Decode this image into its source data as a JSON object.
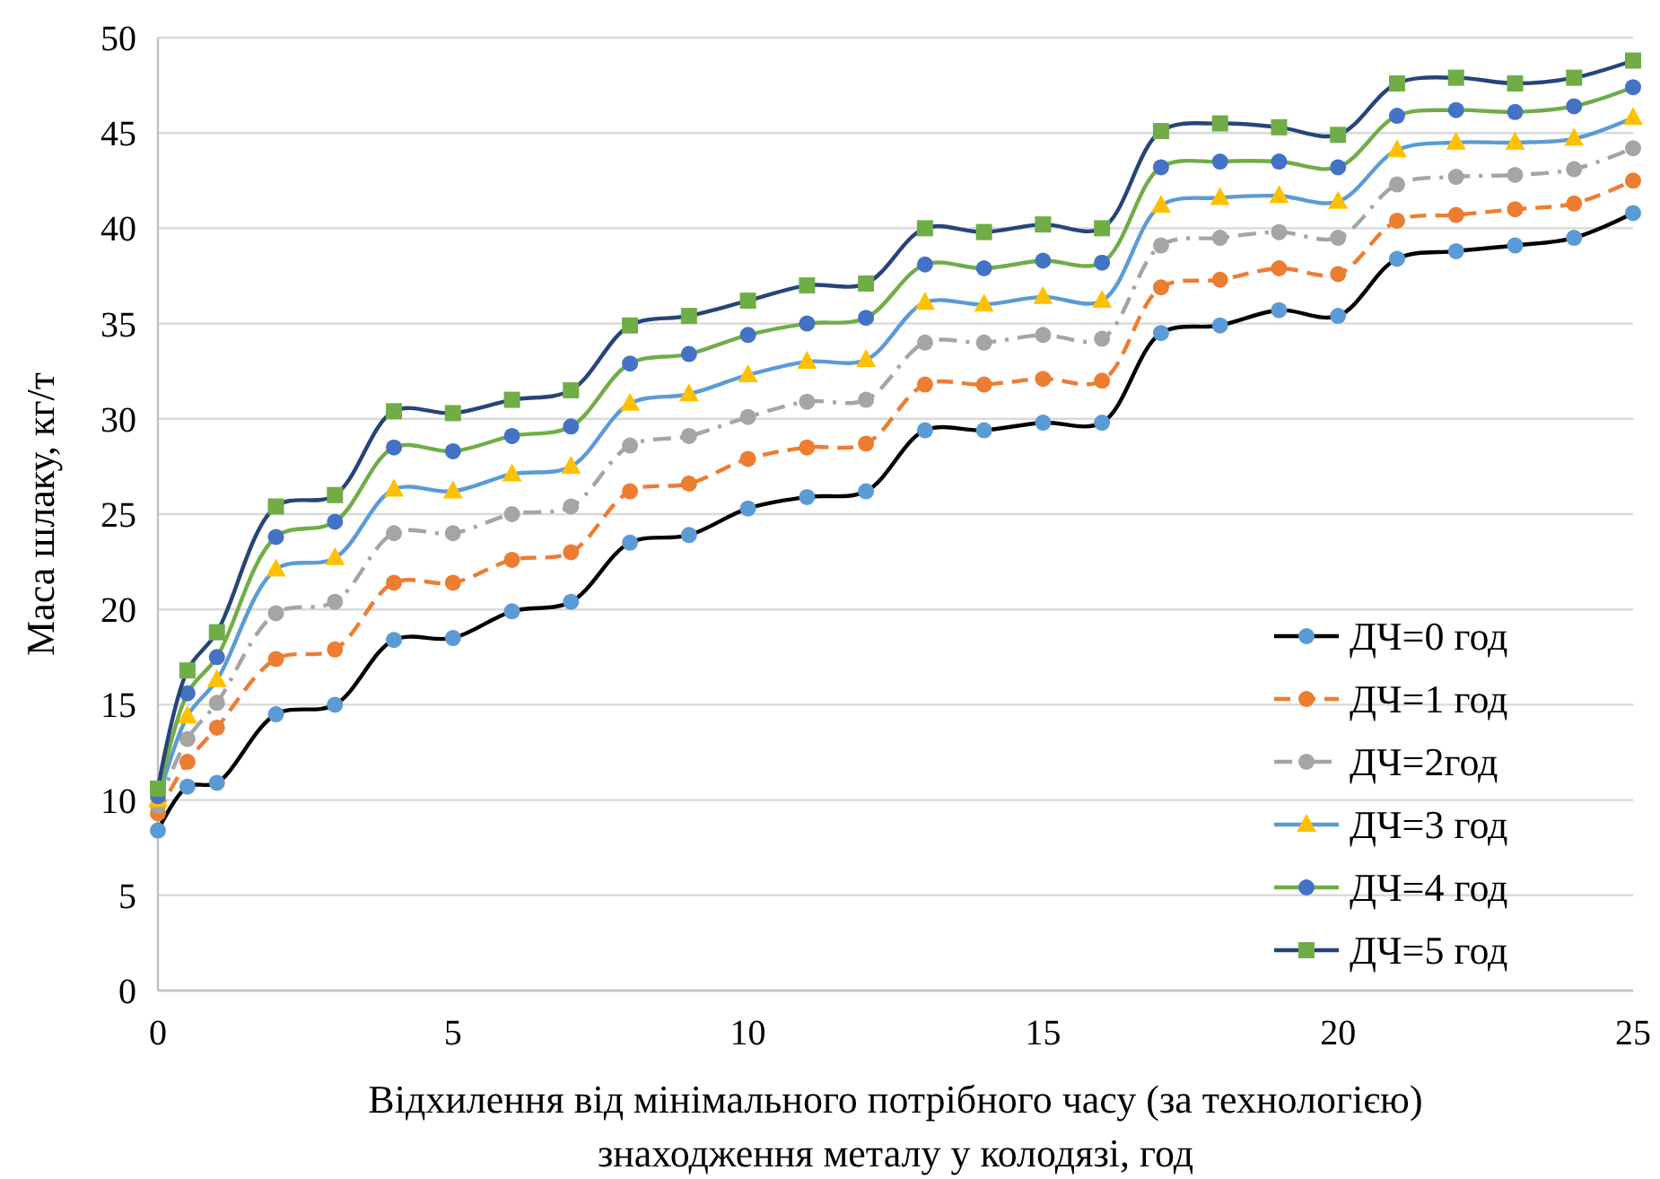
{
  "chart_data": {
    "type": "line",
    "xlabel": "Відхилення від мінімального потрібного часу (за технологією)\nзнаходження металу у колодязі, год",
    "ylabel": "Маса шлаку, кг/т",
    "x": [
      0,
      0.5,
      1,
      2,
      3,
      4,
      5,
      6,
      7,
      8,
      9,
      10,
      11,
      12,
      13,
      14,
      15,
      16,
      17,
      18,
      19,
      20,
      21,
      22,
      23,
      24,
      25
    ],
    "xlim": [
      0,
      25
    ],
    "xticks": [
      0,
      5,
      10,
      15,
      20,
      25
    ],
    "ylim": [
      0,
      50
    ],
    "yticks": [
      0,
      5,
      10,
      15,
      20,
      25,
      30,
      35,
      40,
      45,
      50
    ],
    "grid": "y",
    "legend": "bottom right",
    "series": [
      {
        "name": "ДЧ=0 год",
        "color": "#000000",
        "marker": "circle",
        "line_style": "solid",
        "colors": [
          "#5b9bd5",
          "#5b9bd5",
          "#5b9bd5",
          "#5b9bd5",
          "#5b9bd5",
          "#5b9bd5",
          "#5b9bd5",
          "#5b9bd5",
          "#5b9bd5",
          "#5b9bd5",
          "#5b9bd5",
          "#5b9bd5",
          "#5b9bd5",
          "#5b9bd5",
          "#5b9bd5",
          "#5b9bd5",
          "#5b9bd5",
          "#5b9bd5",
          "#5b9bd5",
          "#5b9bd5",
          "#5b9bd5",
          "#5b9bd5",
          "#5b9bd5",
          "#5b9bd5",
          "#5b9bd5",
          "#5b9bd5",
          "#5b9bd5"
        ],
        "values": [
          8.4,
          10.7,
          10.9,
          14.5,
          15.0,
          18.4,
          18.5,
          19.9,
          20.4,
          23.5,
          23.9,
          25.3,
          25.9,
          26.2,
          29.4,
          29.4,
          29.8,
          29.8,
          34.5,
          34.9,
          35.7,
          35.4,
          38.4,
          38.8,
          39.1,
          39.5,
          40.8
        ]
      },
      {
        "name": "ДЧ=1 год",
        "color": "#ed7d31",
        "marker": "circle",
        "line_style": "dashed",
        "colors": [
          "#ed7d31",
          "#ed7d31",
          "#ed7d31",
          "#ed7d31",
          "#ed7d31",
          "#ed7d31",
          "#ed7d31",
          "#ed7d31",
          "#ed7d31",
          "#ed7d31",
          "#ed7d31",
          "#ed7d31",
          "#ed7d31",
          "#ed7d31",
          "#ed7d31",
          "#ed7d31",
          "#ed7d31",
          "#ed7d31",
          "#ed7d31",
          "#ed7d31",
          "#ed7d31",
          "#ed7d31",
          "#ed7d31",
          "#ed7d31",
          "#ed7d31",
          "#ed7d31",
          "#ed7d31"
        ],
        "values": [
          9.3,
          12.0,
          13.8,
          17.4,
          17.9,
          21.4,
          21.4,
          22.6,
          23.0,
          26.2,
          26.6,
          27.9,
          28.5,
          28.7,
          31.8,
          31.8,
          32.1,
          32.0,
          36.9,
          37.3,
          37.9,
          37.6,
          40.4,
          40.7,
          41.0,
          41.3,
          42.5
        ]
      },
      {
        "name": "ДЧ=2год",
        "color": "#a5a5a5",
        "marker": "circle",
        "line_style": "dotted",
        "colors": [
          "#a5a5a5",
          "#a5a5a5",
          "#a5a5a5",
          "#a5a5a5",
          "#a5a5a5",
          "#a5a5a5",
          "#a5a5a5",
          "#a5a5a5",
          "#a5a5a5",
          "#a5a5a5",
          "#a5a5a5",
          "#a5a5a5",
          "#a5a5a5",
          "#a5a5a5",
          "#a5a5a5",
          "#a5a5a5",
          "#a5a5a5",
          "#a5a5a5",
          "#a5a5a5",
          "#a5a5a5",
          "#a5a5a5",
          "#a5a5a5",
          "#a5a5a5",
          "#a5a5a5",
          "#a5a5a5",
          "#a5a5a5",
          "#a5a5a5"
        ],
        "values": [
          9.7,
          13.2,
          15.1,
          19.8,
          20.4,
          24.0,
          24.0,
          25.0,
          25.4,
          28.6,
          29.1,
          30.1,
          30.9,
          31.0,
          34.0,
          34.0,
          34.4,
          34.2,
          39.1,
          39.5,
          39.8,
          39.5,
          42.3,
          42.7,
          42.8,
          43.1,
          44.2
        ]
      },
      {
        "name": "ДЧ=3 год",
        "color": "#5b9bd5",
        "marker": "triangle",
        "line_style": "solid",
        "colors": [
          "#ffc000",
          "#ffc000",
          "#ffc000",
          "#ffc000",
          "#ffc000",
          "#ffc000",
          "#ffc000",
          "#ffc000",
          "#ffc000",
          "#ffc000",
          "#ffc000",
          "#ffc000",
          "#ffc000",
          "#ffc000",
          "#ffc000",
          "#ffc000",
          "#ffc000",
          "#ffc000",
          "#ffc000",
          "#ffc000",
          "#ffc000",
          "#ffc000",
          "#ffc000",
          "#ffc000",
          "#ffc000",
          "#ffc000",
          "#ffc000"
        ],
        "values": [
          10.0,
          14.4,
          16.3,
          22.1,
          22.7,
          26.3,
          26.2,
          27.1,
          27.5,
          30.8,
          31.3,
          32.3,
          33.0,
          33.1,
          36.1,
          36.0,
          36.4,
          36.2,
          41.2,
          41.6,
          41.7,
          41.4,
          44.1,
          44.5,
          44.5,
          44.7,
          45.8
        ]
      },
      {
        "name": "ДЧ=4 год",
        "color": "#70ad47",
        "marker": "circle",
        "line_style": "solid",
        "colors": [
          "#4472c4",
          "#4472c4",
          "#4472c4",
          "#4472c4",
          "#4472c4",
          "#4472c4",
          "#4472c4",
          "#4472c4",
          "#4472c4",
          "#4472c4",
          "#4472c4",
          "#4472c4",
          "#4472c4",
          "#4472c4",
          "#4472c4",
          "#4472c4",
          "#4472c4",
          "#4472c4",
          "#4472c4",
          "#4472c4",
          "#4472c4",
          "#4472c4",
          "#4472c4",
          "#4472c4",
          "#4472c4",
          "#4472c4",
          "#4472c4"
        ],
        "values": [
          10.2,
          15.6,
          17.5,
          23.8,
          24.6,
          28.5,
          28.3,
          29.1,
          29.6,
          32.9,
          33.4,
          34.4,
          35.0,
          35.3,
          38.1,
          37.9,
          38.3,
          38.2,
          43.2,
          43.5,
          43.5,
          43.2,
          45.9,
          46.2,
          46.1,
          46.4,
          47.4
        ]
      },
      {
        "name": "ДЧ=5 год",
        "color": "#264478",
        "marker": "square",
        "line_style": "solid",
        "colors": [
          "#70ad47",
          "#70ad47",
          "#70ad47",
          "#70ad47",
          "#70ad47",
          "#70ad47",
          "#70ad47",
          "#70ad47",
          "#70ad47",
          "#70ad47",
          "#70ad47",
          "#70ad47",
          "#70ad47",
          "#70ad47",
          "#70ad47",
          "#70ad47",
          "#70ad47",
          "#70ad47",
          "#70ad47",
          "#70ad47",
          "#70ad47",
          "#70ad47",
          "#70ad47",
          "#70ad47",
          "#70ad47",
          "#70ad47",
          "#70ad47"
        ],
        "values": [
          10.6,
          16.8,
          18.8,
          25.4,
          26.0,
          30.4,
          30.3,
          31.0,
          31.5,
          34.9,
          35.4,
          36.2,
          37.0,
          37.1,
          40.0,
          39.8,
          40.2,
          40.0,
          45.1,
          45.5,
          45.3,
          44.9,
          47.6,
          47.9,
          47.6,
          47.9,
          48.8
        ]
      }
    ]
  }
}
